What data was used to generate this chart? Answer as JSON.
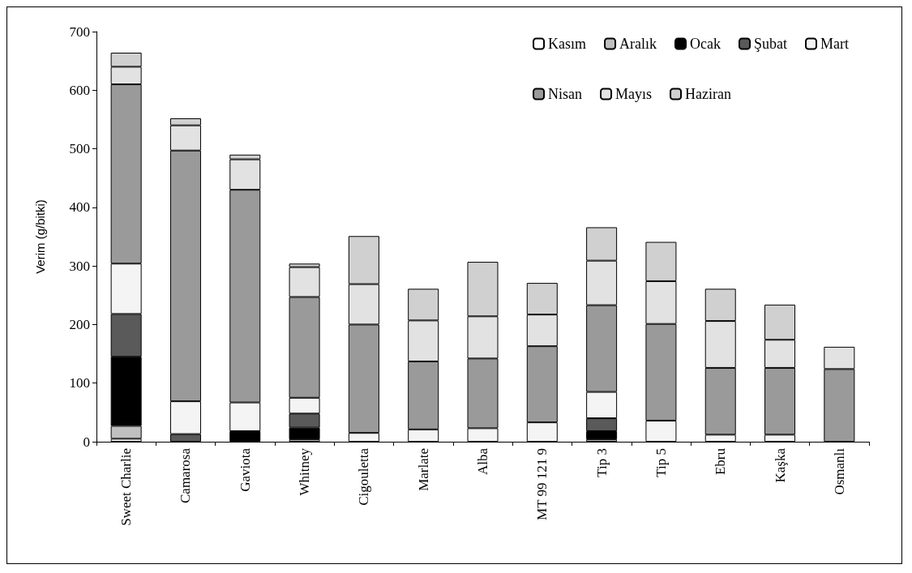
{
  "chart_data": {
    "type": "bar",
    "stacked": true,
    "ylabel": "Verim (g/bitki)",
    "categories": [
      "Sweet Charlie",
      "Camarosa",
      "Gaviota",
      "Whitney",
      "Cigouletta",
      "Marlate",
      "Alba",
      "MT 99 121 9",
      "Tip 3",
      "Tip 5",
      "Ebru",
      "Kaşka",
      "Osmanlı"
    ],
    "ylim": [
      0,
      700
    ],
    "yticks": [
      0,
      100,
      200,
      300,
      400,
      500,
      600,
      700
    ],
    "grid": false,
    "legend": "top right",
    "series": [
      {
        "name": "Kasım",
        "color": "#ffffff",
        "values": [
          5,
          null,
          null,
          null,
          null,
          null,
          null,
          null,
          null,
          null,
          null,
          null,
          null
        ]
      },
      {
        "name": "Aralık",
        "color": "#c0c0c0",
        "values": [
          22,
          null,
          null,
          4,
          null,
          null,
          null,
          null,
          4,
          null,
          null,
          null,
          null
        ]
      },
      {
        "name": "Ocak",
        "color": "#000000",
        "values": [
          118,
          null,
          18,
          20,
          null,
          null,
          null,
          null,
          14,
          null,
          null,
          null,
          null
        ]
      },
      {
        "name": "Şubat",
        "color": "#5a5a5a",
        "values": [
          73,
          13,
          null,
          24,
          null,
          null,
          null,
          null,
          22,
          null,
          null,
          null,
          null
        ]
      },
      {
        "name": "Mart",
        "color": "#f4f4f4",
        "values": [
          86,
          56,
          49,
          27,
          15,
          21,
          23,
          33,
          45,
          36,
          12,
          12,
          null
        ]
      },
      {
        "name": "Nisan",
        "color": "#9a9a9a",
        "values": [
          306,
          428,
          363,
          172,
          185,
          116,
          119,
          130,
          148,
          165,
          114,
          114,
          124
        ]
      },
      {
        "name": "Mayıs",
        "color": "#e2e2e2",
        "values": [
          30,
          43,
          52,
          51,
          69,
          70,
          72,
          54,
          76,
          73,
          80,
          48,
          38
        ]
      },
      {
        "name": "Haziran",
        "color": "#d0d0d0",
        "values": [
          24,
          12,
          8,
          6,
          82,
          54,
          93,
          54,
          57,
          67,
          55,
          60,
          null
        ]
      }
    ]
  }
}
